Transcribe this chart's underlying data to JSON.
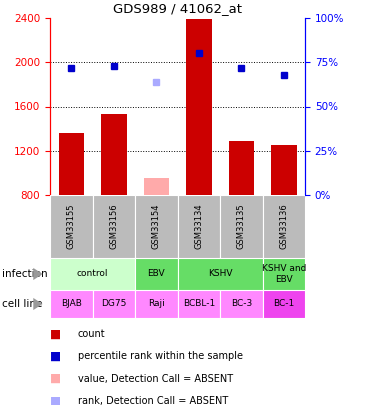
{
  "title": "GDS989 / 41062_at",
  "samples": [
    "GSM33155",
    "GSM33156",
    "GSM33154",
    "GSM33134",
    "GSM33135",
    "GSM33136"
  ],
  "counts": [
    1360,
    1530,
    null,
    2390,
    1290,
    1250
  ],
  "counts_absent": [
    null,
    null,
    950,
    null,
    null,
    null
  ],
  "percentile_ranks": [
    72,
    73,
    null,
    80,
    72,
    68
  ],
  "percentile_ranks_absent": [
    null,
    null,
    64,
    null,
    null,
    null
  ],
  "ylim_left": [
    800,
    2400
  ],
  "ylim_right": [
    0,
    100
  ],
  "yticks_left": [
    800,
    1200,
    1600,
    2000,
    2400
  ],
  "yticks_right": [
    0,
    25,
    50,
    75,
    100
  ],
  "bar_color": "#cc0000",
  "bar_color_absent": "#ffaaaa",
  "rank_color": "#0000cc",
  "rank_color_absent": "#aaaaff",
  "gsm_bg_color": "#bbbbbb",
  "infection_groups": [
    {
      "label": "control",
      "start": 0,
      "end": 1,
      "color": "#ccffcc"
    },
    {
      "label": "EBV",
      "start": 2,
      "end": 2,
      "color": "#66dd66"
    },
    {
      "label": "KSHV",
      "start": 3,
      "end": 4,
      "color": "#66dd66"
    },
    {
      "label": "KSHV and\nEBV",
      "start": 5,
      "end": 5,
      "color": "#66dd66"
    }
  ],
  "cell_lines": [
    {
      "label": "BJAB",
      "col": 0,
      "color": "#ff88ff"
    },
    {
      "label": "DG75",
      "col": 1,
      "color": "#ff88ff"
    },
    {
      "label": "Raji",
      "col": 2,
      "color": "#ff88ff"
    },
    {
      "label": "BCBL-1",
      "col": 3,
      "color": "#ff88ff"
    },
    {
      "label": "BC-3",
      "col": 4,
      "color": "#ff88ff"
    },
    {
      "label": "BC-1",
      "col": 5,
      "color": "#ee44ee"
    }
  ],
  "legend_items": [
    {
      "color": "#cc0000",
      "label": "count"
    },
    {
      "color": "#0000cc",
      "label": "percentile rank within the sample"
    },
    {
      "color": "#ffaaaa",
      "label": "value, Detection Call = ABSENT"
    },
    {
      "color": "#aaaaff",
      "label": "rank, Detection Call = ABSENT"
    }
  ]
}
